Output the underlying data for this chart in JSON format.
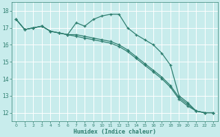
{
  "xlabel": "Humidex (Indice chaleur)",
  "bg_color": "#c8ecec",
  "grid_color": "#ffffff",
  "line_color": "#2d7d6e",
  "xlim": [
    -0.5,
    23.5
  ],
  "ylim": [
    11.5,
    18.5
  ],
  "yticks": [
    12,
    13,
    14,
    15,
    16,
    17,
    18
  ],
  "xticks": [
    0,
    1,
    2,
    3,
    4,
    5,
    6,
    7,
    8,
    9,
    10,
    11,
    12,
    13,
    14,
    15,
    16,
    17,
    18,
    19,
    20,
    21,
    22,
    23
  ],
  "series": [
    [
      17.5,
      16.9,
      17.0,
      17.1,
      16.8,
      16.7,
      16.6,
      17.3,
      17.1,
      17.5,
      17.7,
      17.8,
      17.8,
      17.0,
      16.6,
      16.3,
      16.0,
      15.5,
      14.8,
      13.0,
      12.6,
      12.1,
      12.0,
      12.0
    ],
    [
      17.5,
      16.9,
      17.0,
      17.1,
      16.8,
      16.7,
      16.6,
      16.6,
      16.5,
      16.4,
      16.3,
      16.2,
      16.0,
      15.7,
      15.3,
      14.9,
      14.5,
      14.1,
      13.6,
      12.9,
      12.5,
      12.1,
      12.0,
      12.0
    ],
    [
      17.5,
      16.9,
      17.0,
      17.1,
      16.8,
      16.7,
      16.6,
      16.5,
      16.4,
      16.3,
      16.2,
      16.1,
      15.9,
      15.6,
      15.2,
      14.8,
      14.4,
      14.0,
      13.5,
      12.8,
      12.4,
      12.1,
      12.0,
      12.0
    ]
  ]
}
